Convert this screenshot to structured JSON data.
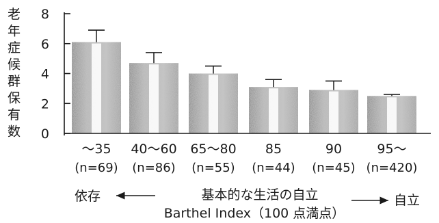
{
  "chart_data": {
    "type": "bar",
    "title": "",
    "ylabel": "老年症候群保有数",
    "xlabel": "基本的な生活の自立",
    "xlabel_sub": "Barthel Index（100 点満点）",
    "arrow_left_label": "依存",
    "arrow_right_label": "自立",
    "ylim": [
      0,
      8
    ],
    "yticks": [
      "0",
      "2",
      "4",
      "6",
      "8"
    ],
    "grid": false,
    "legend": "none",
    "categories": [
      "〜35",
      "40〜60",
      "65〜80",
      "85",
      "90",
      "95〜"
    ],
    "sample_sizes": [
      "(n=69)",
      "(n=86)",
      "(n=55)",
      "(n=44)",
      "(n=45)",
      "(n=420)"
    ],
    "series": [
      {
        "values": [
          6.1,
          4.7,
          4.0,
          3.1,
          2.9,
          2.5
        ],
        "error_upper": [
          6.9,
          5.4,
          4.5,
          3.6,
          3.5,
          2.6
        ]
      }
    ],
    "bar_color": "#a7a7a7"
  }
}
